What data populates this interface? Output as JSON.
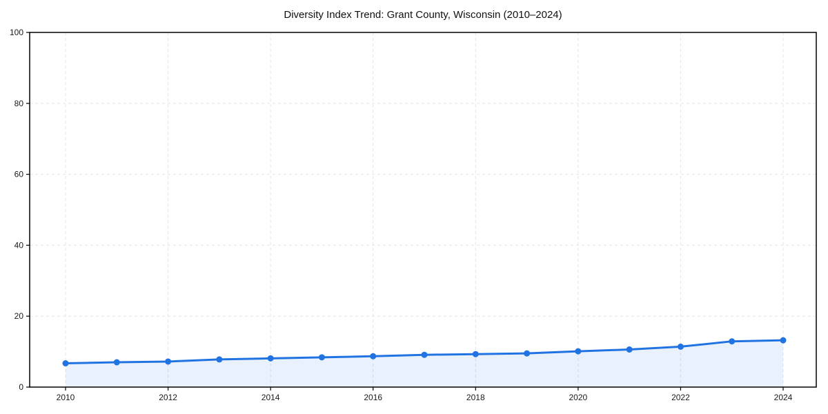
{
  "chart_data": {
    "type": "line",
    "title": "Diversity Index Trend: Grant County, Wisconsin (2010–2024)",
    "x": [
      2010,
      2011,
      2012,
      2013,
      2014,
      2015,
      2016,
      2017,
      2018,
      2019,
      2020,
      2021,
      2022,
      2023,
      2024
    ],
    "series": [
      {
        "name": "Diversity Index",
        "values": [
          6.7,
          7.0,
          7.2,
          7.8,
          8.1,
          8.4,
          8.7,
          9.1,
          9.3,
          9.5,
          10.1,
          10.6,
          11.4,
          12.9,
          13.2
        ]
      }
    ],
    "xlabel": "",
    "ylabel": "",
    "xticks": [
      2010,
      2012,
      2014,
      2016,
      2018,
      2020,
      2022,
      2024
    ],
    "yticks": [
      0,
      20,
      40,
      60,
      80,
      100
    ],
    "xlim": [
      2009.3,
      2024.65
    ],
    "ylim": [
      0,
      100
    ],
    "grid": true,
    "grid_style": "dashed",
    "legend": "none",
    "marker": "circle",
    "colors": {
      "line": "#2173e2",
      "marker": "#2173e2",
      "area_fill": "rgba(33,115,226,0.10)",
      "grid": "#e3e3e3",
      "axis": "#000000",
      "tick_label": "#1a1a1a",
      "background": "#ffffff"
    }
  }
}
